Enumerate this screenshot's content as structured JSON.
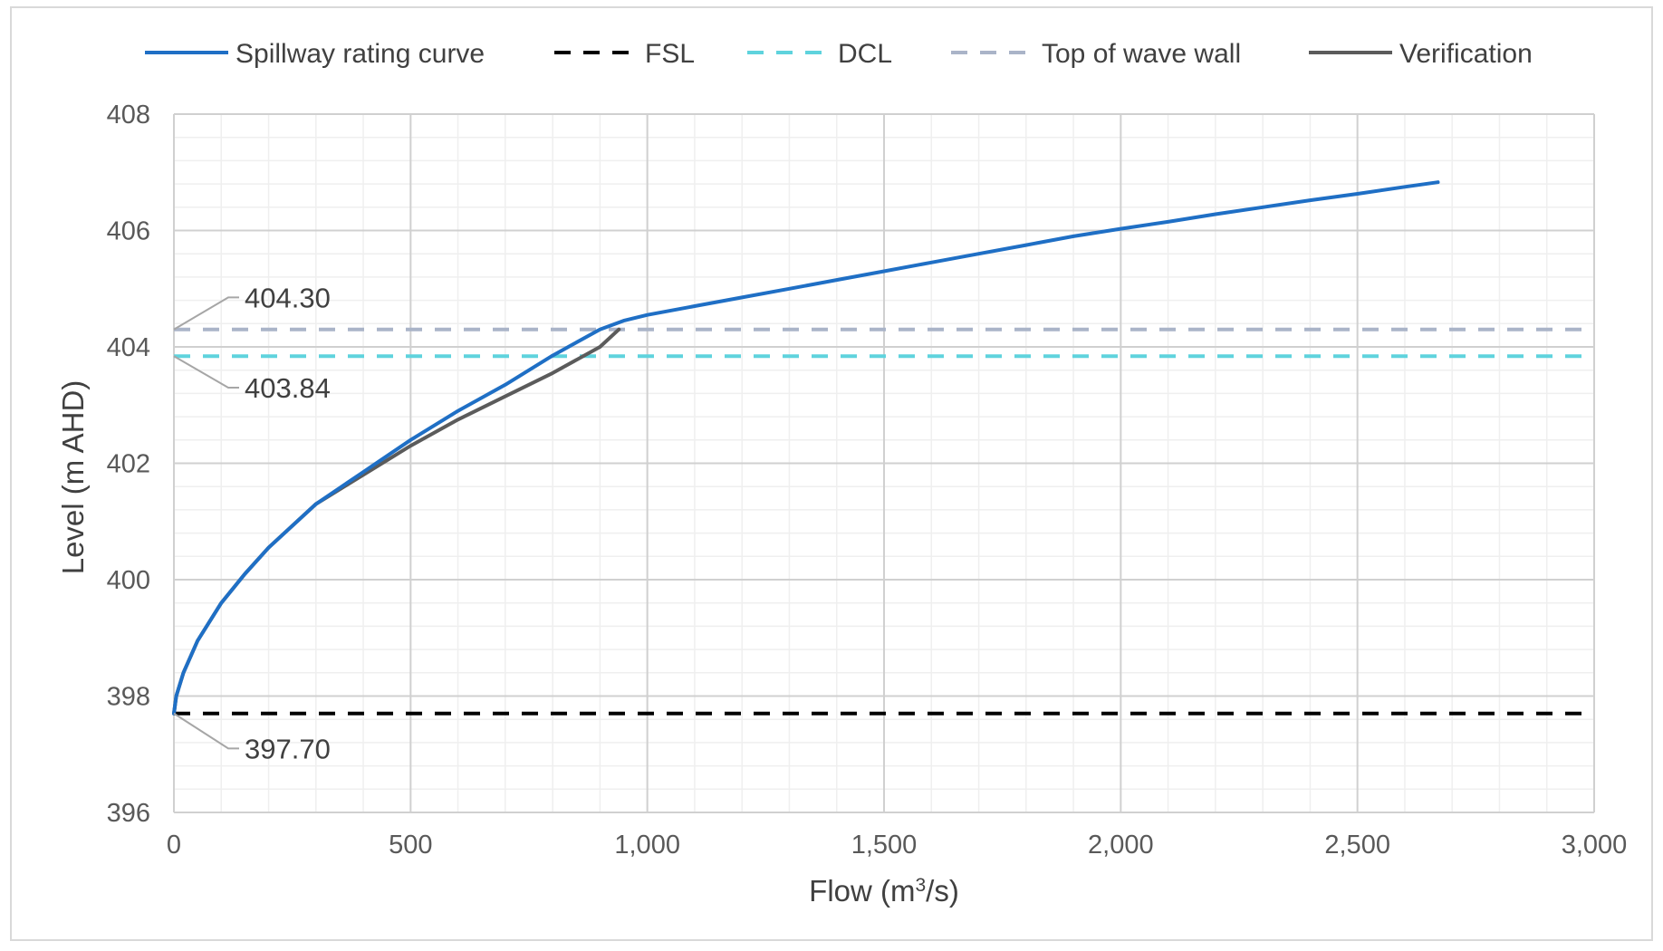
{
  "chart_data": {
    "type": "line",
    "title": "",
    "xlabel": "Flow (m³/s)",
    "xlabel_main": "Flow (m",
    "xlabel_sup": "3",
    "xlabel_tail": "/s)",
    "ylabel": "Level (m AHD)",
    "xlim": [
      0,
      3000
    ],
    "ylim": [
      396,
      408
    ],
    "x_ticks": [
      0,
      500,
      1000,
      1500,
      2000,
      2500,
      3000
    ],
    "x_tick_labels": [
      "0",
      "500",
      "1,000",
      "1,500",
      "2,000",
      "2,500",
      "3,000"
    ],
    "y_ticks": [
      396,
      398,
      400,
      402,
      404,
      406,
      408
    ],
    "y_tick_labels": [
      "396",
      "398",
      "400",
      "402",
      "404",
      "406",
      "408"
    ],
    "grid": "major and minor",
    "legend_position": "top",
    "series": [
      {
        "name": "Spillway rating curve",
        "color": "#1f6fc5",
        "style": "solid",
        "x": [
          0,
          5,
          20,
          50,
          100,
          150,
          200,
          300,
          400,
          500,
          600,
          700,
          800,
          900,
          950,
          1000,
          1100,
          1200,
          1300,
          1400,
          1500,
          1600,
          1700,
          1800,
          1900,
          2000,
          2100,
          2200,
          2300,
          2400,
          2500,
          2600,
          2670
        ],
        "y": [
          397.7,
          398.0,
          398.4,
          398.95,
          399.6,
          400.1,
          400.55,
          401.3,
          401.85,
          402.4,
          402.9,
          403.35,
          403.85,
          404.3,
          404.45,
          404.55,
          404.7,
          404.85,
          405.0,
          405.15,
          405.3,
          405.45,
          405.6,
          405.75,
          405.9,
          406.03,
          406.15,
          406.28,
          406.4,
          406.52,
          406.63,
          406.75,
          406.83
        ]
      },
      {
        "name": "FSL",
        "color": "#000000",
        "style": "dashed",
        "x": [
          0,
          3000
        ],
        "y": [
          397.7,
          397.7
        ]
      },
      {
        "name": "DCL",
        "color": "#5fd3dd",
        "style": "dashed",
        "x": [
          0,
          3000
        ],
        "y": [
          403.84,
          403.84
        ]
      },
      {
        "name": "Top of wave wall",
        "color": "#aab4c8",
        "style": "dashed",
        "x": [
          0,
          3000
        ],
        "y": [
          404.3,
          404.3
        ]
      },
      {
        "name": "Verification",
        "color": "#5b5b5b",
        "style": "solid",
        "x": [
          0,
          5,
          20,
          50,
          100,
          150,
          200,
          300,
          400,
          500,
          600,
          700,
          800,
          900,
          940
        ],
        "y": [
          397.7,
          398.0,
          398.4,
          398.95,
          399.6,
          400.1,
          400.55,
          401.3,
          401.8,
          402.3,
          402.75,
          403.15,
          403.55,
          404.0,
          404.3
        ]
      }
    ],
    "annotations": [
      {
        "label": "404.30",
        "y": 404.3,
        "label_y": 404.85
      },
      {
        "label": "403.84",
        "y": 403.84,
        "label_y": 403.3
      },
      {
        "label": "397.70",
        "y": 397.7,
        "label_y": 397.1
      }
    ]
  }
}
